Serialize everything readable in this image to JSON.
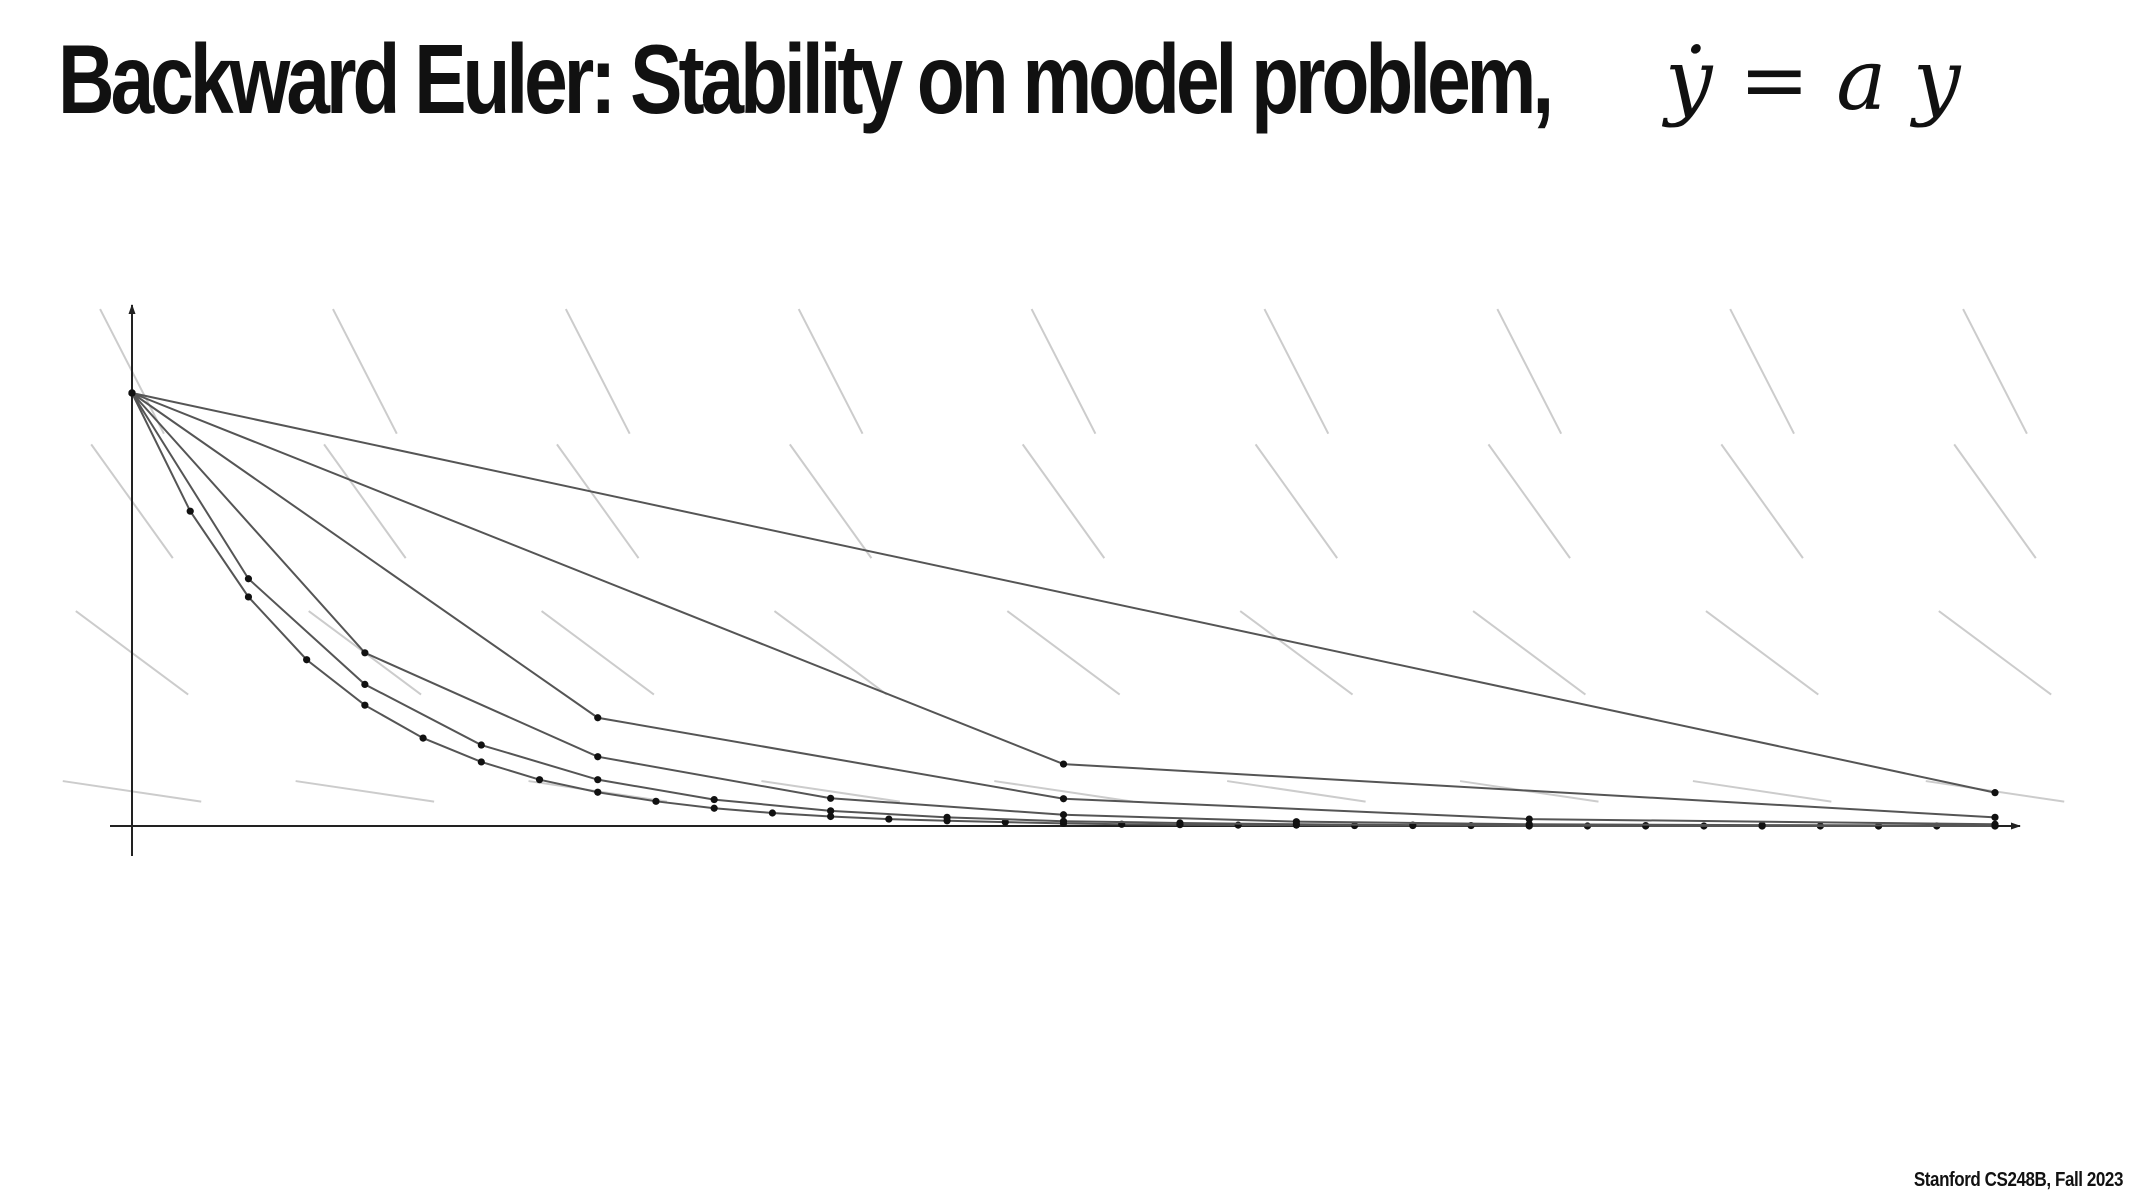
{
  "slide": {
    "title": "Backward Euler: Stability on model problem,",
    "equation": "ẏ = a y",
    "footer": "Stanford CS248B, Fall 2023"
  },
  "colors": {
    "line": "#555555",
    "point": "#111111",
    "axis": "#222222",
    "slope_field": "#cccccc"
  },
  "chart_data": {
    "type": "line",
    "title": "",
    "xlabel": "",
    "ylabel": "",
    "xlim": [
      0,
      8
    ],
    "ylim": [
      0,
      1
    ],
    "grid": false,
    "legend": "none",
    "slope_field": true,
    "series": [
      {
        "step": 0.25,
        "x": [
          0,
          0.25,
          0.5,
          0.75,
          1,
          1.25,
          1.5,
          1.75,
          2,
          2.25,
          2.5,
          2.75,
          3,
          3.25,
          3.5,
          3.75,
          4,
          4.25,
          4.5,
          4.75,
          5,
          5.25,
          5.5,
          5.75,
          6,
          6.25,
          6.5,
          6.75,
          7,
          7.25,
          7.5,
          7.75,
          8
        ],
        "values": [
          1,
          0.727,
          0.529,
          0.384,
          0.279,
          0.203,
          0.148,
          0.107,
          0.078,
          0.057,
          0.041,
          0.03,
          0.022,
          0.016,
          0.012,
          0.009,
          0.006,
          0.004,
          0.003,
          0.002,
          0.002,
          0.001,
          0.001,
          0.001,
          0,
          0,
          0,
          0,
          0,
          0,
          0,
          0,
          0
        ]
      },
      {
        "step": 0.5,
        "x": [
          0,
          0.5,
          1,
          1.5,
          2,
          2.5,
          3,
          3.5,
          4,
          4.5,
          5,
          5.5,
          6,
          6.5,
          7,
          7.5,
          8
        ],
        "values": [
          1,
          0.571,
          0.327,
          0.187,
          0.107,
          0.061,
          0.035,
          0.02,
          0.011,
          0.007,
          0.004,
          0.002,
          0.001,
          0.001,
          0,
          0,
          0
        ]
      },
      {
        "step": 1,
        "x": [
          0,
          1,
          2,
          3,
          4,
          5,
          6,
          7,
          8
        ],
        "values": [
          1,
          0.4,
          0.16,
          0.064,
          0.026,
          0.01,
          0.004,
          0.002,
          0.001
        ]
      },
      {
        "step": 2,
        "x": [
          0,
          2,
          4,
          6,
          8
        ],
        "values": [
          1,
          0.25,
          0.063,
          0.016,
          0.004
        ]
      },
      {
        "step": 4,
        "x": [
          0,
          4,
          8
        ],
        "values": [
          1,
          0.143,
          0.02
        ]
      },
      {
        "step": 8,
        "x": [
          0,
          8
        ],
        "values": [
          1,
          0.077
        ]
      }
    ]
  }
}
